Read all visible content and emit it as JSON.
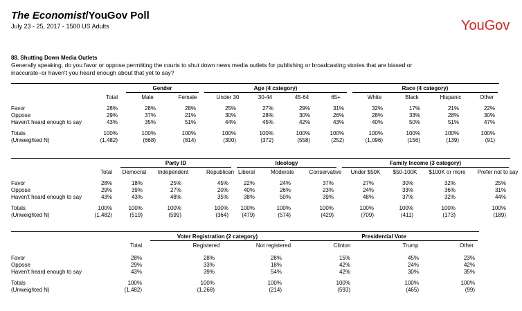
{
  "header": {
    "title_italic": "The Economist",
    "title_rest": "/YouGov Poll",
    "subtitle": "July 23 - 25, 2017 - 1500 US Adults",
    "logo": "YouGov"
  },
  "question": {
    "heading": "88. Shutting Down Media Outlets",
    "text": "Generally speaking, do you favor or oppose permitting the courts to shut down news media outlets for publishing or broadcasting stories that are biased or inaccurate–or haven't you heard enough about that yet to say?"
  },
  "tables": [
    {
      "total_label": "Total",
      "groups": [
        {
          "label": "Gender",
          "columns": [
            "Male",
            "Female"
          ]
        },
        {
          "label": "Age (4 category)",
          "columns": [
            "Under 30",
            "30-44",
            "45-64",
            "65+"
          ]
        },
        {
          "label": "Race (4 category)",
          "columns": [
            "White",
            "Black",
            "Hispanic",
            "Other"
          ]
        }
      ],
      "rows": [
        {
          "label": "Favor",
          "cells": [
            "28%",
            "28%",
            "28%",
            "25%",
            "27%",
            "29%",
            "31%",
            "32%",
            "17%",
            "21%",
            "22%"
          ]
        },
        {
          "label": "Oppose",
          "cells": [
            "29%",
            "37%",
            "21%",
            "30%",
            "28%",
            "30%",
            "26%",
            "28%",
            "33%",
            "28%",
            "30%"
          ]
        },
        {
          "label": "Haven't heard enough to say",
          "cells": [
            "43%",
            "35%",
            "51%",
            "44%",
            "45%",
            "42%",
            "43%",
            "40%",
            "50%",
            "51%",
            "47%"
          ]
        },
        {
          "label": "Totals",
          "cells": [
            "100%",
            "100%",
            "100%",
            "100%",
            "100%",
            "100%",
            "100%",
            "100%",
            "100%",
            "100%",
            "100%"
          ]
        },
        {
          "label": "(Unweighted N)",
          "cells": [
            "(1,482)",
            "(668)",
            "(814)",
            "(300)",
            "(372)",
            "(558)",
            "(252)",
            "(1,096)",
            "(156)",
            "(139)",
            "(91)"
          ]
        }
      ]
    },
    {
      "total_label": "Total",
      "groups": [
        {
          "label": "Party ID",
          "columns": [
            "Democrat",
            "Independent",
            "Republican"
          ]
        },
        {
          "label": "Ideology",
          "columns": [
            "Liberal",
            "Moderate",
            "Conservative"
          ]
        },
        {
          "label": "Family Income (3 category)",
          "columns": [
            "Under $50K",
            "$50-100K",
            "$100K or more",
            "Prefer not to say"
          ]
        }
      ],
      "rows": [
        {
          "label": "Favor",
          "cells": [
            "28%",
            "18%",
            "25%",
            "45%",
            "22%",
            "24%",
            "37%",
            "27%",
            "30%",
            "32%",
            "25%"
          ]
        },
        {
          "label": "Oppose",
          "cells": [
            "29%",
            "39%",
            "27%",
            "20%",
            "40%",
            "26%",
            "23%",
            "24%",
            "33%",
            "36%",
            "31%"
          ]
        },
        {
          "label": "Haven't heard enough to say",
          "cells": [
            "43%",
            "43%",
            "48%",
            "35%",
            "38%",
            "50%",
            "39%",
            "48%",
            "37%",
            "32%",
            "44%"
          ]
        },
        {
          "label": "Totals",
          "cells": [
            "100%",
            "100%",
            "100%",
            "100%",
            "100%",
            "100%",
            "100%",
            "100%",
            "100%",
            "100%",
            "100%"
          ]
        },
        {
          "label": "(Unweighted N)",
          "cells": [
            "(1,482)",
            "(519)",
            "(599)",
            "(364)",
            "(479)",
            "(574)",
            "(429)",
            "(709)",
            "(411)",
            "(173)",
            "(189)"
          ]
        }
      ]
    },
    {
      "total_label": "Total",
      "groups": [
        {
          "label": "Voter Registration (2 category)",
          "columns": [
            "Registered",
            "Not registered"
          ]
        },
        {
          "label": "Presidential Vote",
          "columns": [
            "Clinton",
            "Trump",
            "Other"
          ]
        }
      ],
      "rows": [
        {
          "label": "Favor",
          "cells": [
            "28%",
            "28%",
            "28%",
            "15%",
            "45%",
            "23%"
          ]
        },
        {
          "label": "Oppose",
          "cells": [
            "29%",
            "33%",
            "18%",
            "42%",
            "24%",
            "42%"
          ]
        },
        {
          "label": "Haven't heard enough to say",
          "cells": [
            "43%",
            "39%",
            "54%",
            "42%",
            "30%",
            "35%"
          ]
        },
        {
          "label": "Totals",
          "cells": [
            "100%",
            "100%",
            "100%",
            "100%",
            "100%",
            "100%"
          ]
        },
        {
          "label": "(Unweighted N)",
          "cells": [
            "(1,482)",
            "(1,268)",
            "(214)",
            "(593)",
            "(465)",
            "(99)"
          ]
        }
      ]
    }
  ]
}
